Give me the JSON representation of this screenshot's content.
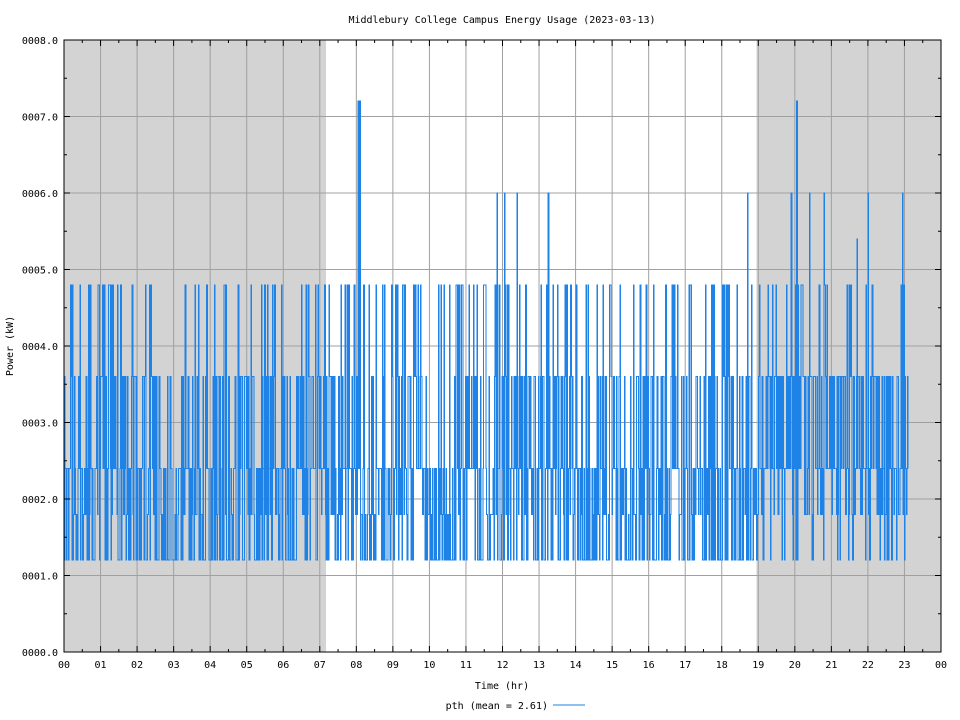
{
  "chart_data": {
    "type": "line",
    "title": "Middlebury College Campus Energy Usage (2023-03-13)",
    "xlabel": "Time (hr)",
    "ylabel": "Power (kW)",
    "xlim": [
      0,
      24
    ],
    "ylim": [
      0,
      8
    ],
    "x_ticks": [
      "00",
      "01",
      "02",
      "03",
      "04",
      "05",
      "06",
      "07",
      "08",
      "09",
      "10",
      "11",
      "12",
      "13",
      "14",
      "15",
      "16",
      "17",
      "18",
      "19",
      "20",
      "21",
      "22",
      "23",
      "00"
    ],
    "y_ticks": [
      "0000.0",
      "0001.0",
      "0002.0",
      "0003.0",
      "0004.0",
      "0005.0",
      "0006.0",
      "0007.0",
      "0008.0"
    ],
    "grid": true,
    "shaded_periods": [
      [
        0,
        7.17
      ],
      [
        18.95,
        24
      ]
    ],
    "legend": {
      "position": "bottom-center",
      "label": "pth (mean = 2.61)"
    },
    "series": [
      {
        "name": "pth",
        "color": "#1e82e6",
        "mean": 2.61,
        "step_minutes": 1,
        "start_hour": 0,
        "end_hour": 23.1,
        "min": 1.2,
        "max": 7.2,
        "levels": [
          1.2,
          1.8,
          2.4,
          3.6,
          4.2,
          4.8,
          6.0,
          7.2
        ],
        "spikes": [
          {
            "x": 8.05,
            "y": 7.2
          },
          {
            "x": 8.1,
            "y": 7.2
          },
          {
            "x": 11.85,
            "y": 6.0
          },
          {
            "x": 12.05,
            "y": 6.0
          },
          {
            "x": 12.4,
            "y": 6.0
          },
          {
            "x": 13.25,
            "y": 6.0
          },
          {
            "x": 18.7,
            "y": 6.0
          },
          {
            "x": 19.9,
            "y": 6.0
          },
          {
            "x": 20.05,
            "y": 7.2
          },
          {
            "x": 20.4,
            "y": 6.0
          },
          {
            "x": 20.8,
            "y": 6.0
          },
          {
            "x": 21.7,
            "y": 5.4
          },
          {
            "x": 22.0,
            "y": 6.0
          },
          {
            "x": 22.95,
            "y": 6.0
          }
        ]
      }
    ]
  }
}
